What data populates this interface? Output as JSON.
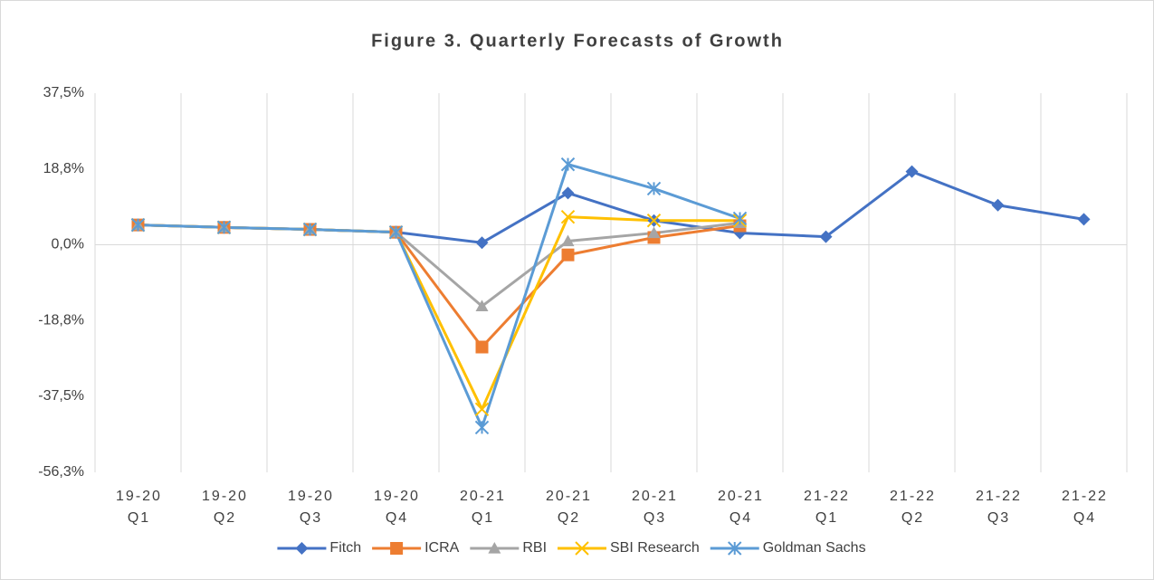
{
  "chart_data": {
    "type": "line",
    "title": "Figure 3. Quarterly Forecasts of Growth",
    "categories": [
      "19-20\nQ1",
      "19-20\nQ2",
      "19-20\nQ3",
      "19-20\nQ4",
      "20-21\nQ1",
      "20-21\nQ2",
      "20-21\nQ3",
      "20-21\nQ4",
      "21-22\nQ1",
      "21-22\nQ2",
      "21-22\nQ3",
      "21-22\nQ4"
    ],
    "series": [
      {
        "name": "Fitch",
        "color": "#4472c4",
        "marker": "diamond",
        "values": [
          4.9,
          4.3,
          3.8,
          3.1,
          0.5,
          12.8,
          6.0,
          2.9,
          2.0,
          18.1,
          9.8,
          6.3
        ]
      },
      {
        "name": "ICRA",
        "color": "#ed7d31",
        "marker": "square",
        "values": [
          4.9,
          4.3,
          3.8,
          3.1,
          -25.3,
          -2.5,
          1.8,
          4.7,
          null,
          null,
          null,
          null
        ]
      },
      {
        "name": "RBI",
        "color": "#a5a5a5",
        "marker": "triangle",
        "values": [
          4.9,
          4.3,
          3.8,
          3.1,
          -15.2,
          0.9,
          2.9,
          5.4,
          null,
          null,
          null,
          null
        ]
      },
      {
        "name": "SBI Research",
        "color": "#ffc000",
        "marker": "x",
        "values": [
          4.9,
          4.3,
          3.8,
          3.1,
          -40.7,
          6.9,
          6.0,
          6.0,
          null,
          null,
          null,
          null
        ]
      },
      {
        "name": "Goldman Sachs",
        "color": "#5b9bd5",
        "marker": "star",
        "values": [
          4.9,
          4.3,
          3.8,
          3.1,
          -45.2,
          19.9,
          13.9,
          6.5,
          null,
          null,
          null,
          null
        ]
      }
    ],
    "ylim": [
      -56.3,
      37.5
    ],
    "yticks": [
      {
        "value": 37.5,
        "label": "37,5%"
      },
      {
        "value": 18.8,
        "label": "18,8%"
      },
      {
        "value": 0,
        "label": "0,0%"
      },
      {
        "value": -18.8,
        "label": "-18,8%"
      },
      {
        "value": -37.5,
        "label": "-37,5%"
      },
      {
        "value": -56.3,
        "label": "-56,3%"
      }
    ],
    "legend": "bottom"
  }
}
